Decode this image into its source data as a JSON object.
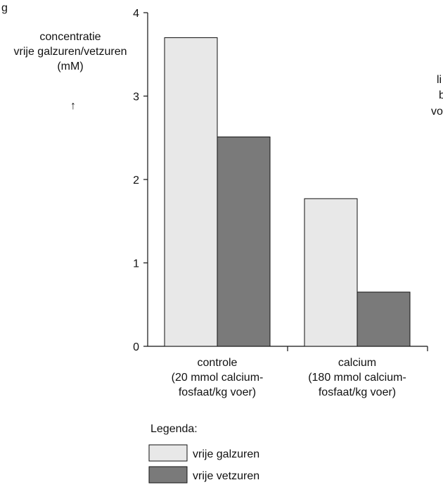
{
  "chart_data": {
    "type": "bar",
    "title": "",
    "page_fragment": "g",
    "right_cutoff_lines": [
      "li",
      "b",
      "vo"
    ],
    "ylabel_lines": [
      "concentratie",
      "vrije galzuren/vetzuren",
      "(mM)"
    ],
    "ylabel_arrow": "↑",
    "ylim": [
      0,
      4
    ],
    "yticks": [
      0,
      1,
      2,
      3,
      4
    ],
    "categories": [
      [
        "controle",
        "(20 mmol calcium-",
        "fosfaat/kg voer)"
      ],
      [
        "calcium",
        "(180 mmol calcium-",
        "fosfaat/kg voer)"
      ]
    ],
    "series": [
      {
        "name": "vrije galzuren",
        "values": [
          3.7,
          1.77
        ],
        "color": "#e8e8e8"
      },
      {
        "name": "vrije vetzuren",
        "values": [
          2.51,
          0.65
        ],
        "color": "#7a7a7a"
      }
    ],
    "legend_title": "Legenda:",
    "legend_placement": "bottom-left",
    "grid": false
  }
}
